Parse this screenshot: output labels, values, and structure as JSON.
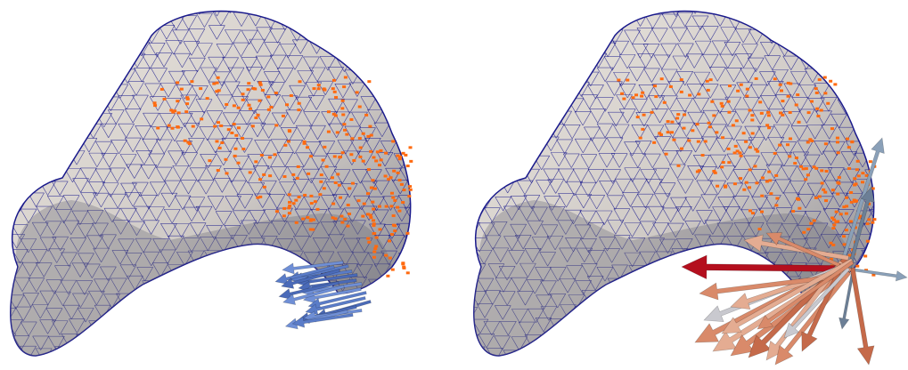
{
  "scene": {
    "background": "#ffffff",
    "panels": [
      {
        "id": "left",
        "mesh_color": "#ddd8d2",
        "mesh_shadow": "#8a8a90",
        "wire_color": "#1a1a8c",
        "point_color": "#ff6a10",
        "arrow_colors": [
          "#6f8fd6",
          "#5a7cc8",
          "#4a6ab8"
        ]
      },
      {
        "id": "right",
        "mesh_color": "#ddd8d2",
        "mesh_shadow": "#8a8a90",
        "wire_color": "#1a1a8c",
        "point_color": "#ff6a10",
        "arrow_colors": [
          "#b40f1e",
          "#d98a6a",
          "#e4ac92",
          "#c9c9cf",
          "#8aa0b8",
          "#6c7f96",
          "#c56a4a"
        ]
      }
    ]
  }
}
